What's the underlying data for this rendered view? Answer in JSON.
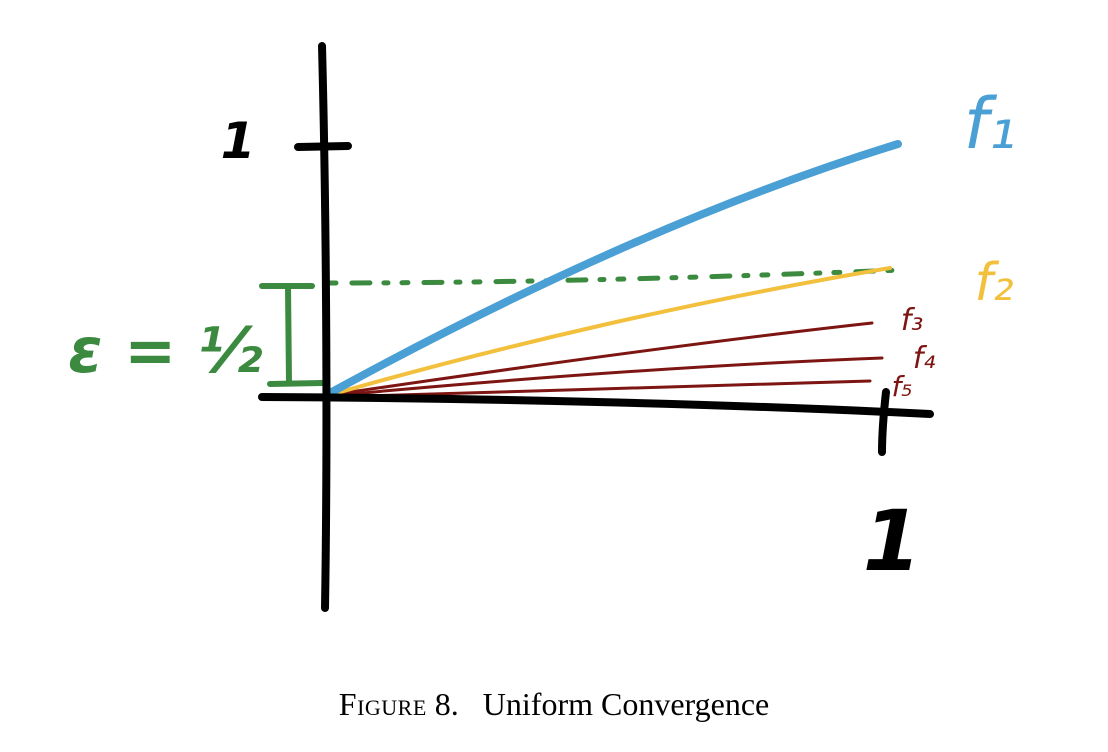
{
  "figure": {
    "caption_label": "Figure",
    "caption_number": "8.",
    "caption_text": "Uniform Convergence"
  },
  "axes": {
    "y_tick_label": "1",
    "x_tick_label": "1"
  },
  "epsilon": {
    "label": "ε = ½",
    "color": "#3b8a3f"
  },
  "functions": [
    {
      "name": "f₁",
      "color": "#4a9fd5"
    },
    {
      "name": "f₂",
      "color": "#f2c03d"
    },
    {
      "name": "f₃",
      "color": "#7d1512"
    },
    {
      "name": "f₄",
      "color": "#7d1512"
    },
    {
      "name": "f₅",
      "color": "#7d1512"
    }
  ]
}
